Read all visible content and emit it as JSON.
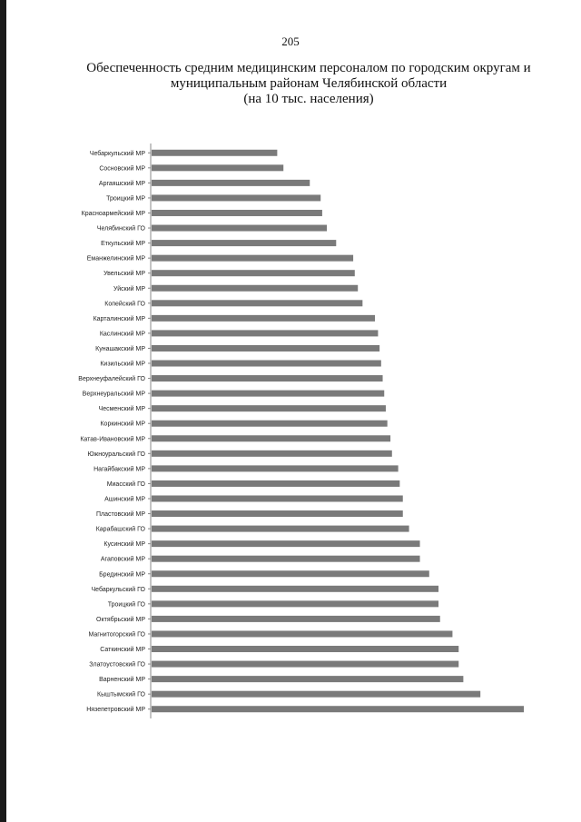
{
  "page": {
    "number": "205"
  },
  "header": {
    "title_lines": [
      "Обеспеченность средним медицинским персоналом по городским округам и",
      "муниципальным районам Челябинской области",
      "(на 10 тыс. населения)"
    ]
  },
  "chart_data": {
    "type": "bar",
    "orientation": "horizontal",
    "title": "Обеспеченность средним медицинским персоналом по городским округам и муниципальным районам Челябинской области (на 10 тыс. населения)",
    "bar_color": "#7a7a7a",
    "axis_color": "#888888",
    "xlim": [
      0,
      120
    ],
    "grid": false,
    "value_labels_shown": false,
    "categories": [
      "Чебаркульский МР",
      "Сосновский МР",
      "Аргаяшский МР",
      "Троицкий МР",
      "Красноармейский МР",
      "Челябинский ГО",
      "Еткульский МР",
      "Еманжелинский МР",
      "Увельский МР",
      "Уйский МР",
      "Копейский ГО",
      "Карталинский МР",
      "Каслинский МР",
      "Кунашакский МР",
      "Кизильский МР",
      "Верхнеуфалейский ГО",
      "Верхнеуральский МР",
      "Чесменский МР",
      "Коркинский МР",
      "Катав-Ивановский МР",
      "Южноуральский ГО",
      "Нагайбакский МР",
      "Миасский ГО",
      "Ашинский МР",
      "Пластовский МР",
      "Карабашский ГО",
      "Кусинский МР",
      "Агаповский МР",
      "Брединский МР",
      "Чебаркульский ГО",
      "Троицкий ГО",
      "Октябрьский МР",
      "Магнитогорский ГО",
      "Саткинский МР",
      "Златоустовский ГО",
      "Варненский МР",
      "Кыштымский ГО",
      "Нязепетровский МР"
    ],
    "values": [
      40.5,
      42.5,
      51.0,
      54.5,
      55.0,
      56.5,
      59.5,
      65.0,
      65.5,
      66.5,
      68.0,
      72.0,
      73.0,
      73.5,
      74.0,
      74.5,
      75.0,
      75.5,
      76.0,
      77.0,
      77.5,
      79.5,
      80.0,
      81.0,
      81.0,
      83.0,
      86.5,
      86.5,
      89.5,
      92.5,
      92.5,
      93.0,
      97.0,
      99.0,
      99.0,
      100.5,
      106.0,
      120.0
    ]
  }
}
